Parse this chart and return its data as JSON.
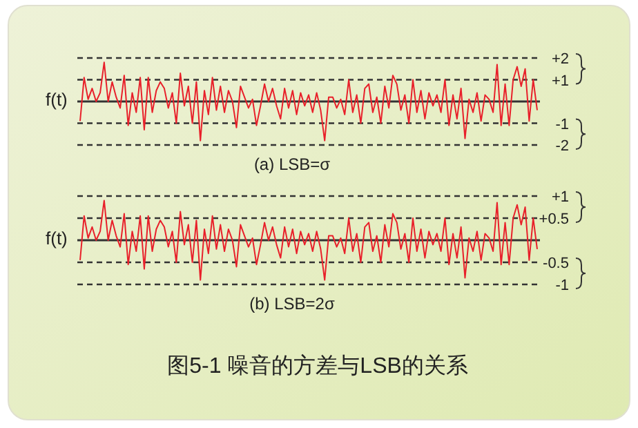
{
  "chart_data": [
    {
      "type": "line",
      "ylabel": "f(t)",
      "xlabel": "(a) LSB=σ",
      "ylim": [
        -2,
        2
      ],
      "categories": [
        null,
        null,
        null,
        null,
        null,
        null,
        null,
        null,
        null,
        null,
        null,
        null,
        null,
        null,
        null,
        null,
        null,
        null,
        null,
        null,
        null,
        null,
        null,
        null,
        null,
        null,
        null,
        null,
        null,
        null,
        null,
        null,
        null,
        null,
        null,
        null,
        null,
        null,
        null,
        null,
        null,
        null,
        null,
        null,
        null,
        null,
        null,
        null,
        null,
        null,
        null,
        null,
        null,
        null,
        null,
        null,
        null,
        null,
        null,
        null,
        null,
        null,
        null,
        null,
        null,
        null,
        null,
        null,
        null,
        null,
        null,
        null,
        null,
        null,
        null,
        null,
        null,
        null,
        null,
        null,
        null,
        null,
        null,
        null,
        null,
        null,
        null,
        null,
        null,
        null,
        null,
        null,
        null,
        null,
        null,
        null,
        null,
        null,
        null,
        null,
        null,
        null,
        null,
        null,
        null,
        null,
        null,
        null,
        null,
        null,
        null,
        null,
        null,
        null,
        null
      ],
      "series": [
        {
          "color": "#e8202a",
          "values": [
            -0.9,
            1.1,
            0.1,
            0.6,
            0,
            0.4,
            1.8,
            0,
            0.9,
            0.2,
            -0.3,
            1.2,
            -1.1,
            0.4,
            -0.5,
            1.1,
            -1.3,
            1.1,
            -0.5,
            0.5,
            0.9,
            0.6,
            -0.3,
            0.4,
            -1.0,
            1.3,
            -0.2,
            0.7,
            -1.0,
            0.9,
            -1.8,
            0.5,
            -0.6,
            1.1,
            -0.4,
            0.7,
            -0.5,
            0.5,
            0,
            -1.2,
            0.7,
            0.2,
            -0.3,
            0.1,
            -1.1,
            -0.2,
            0.8,
            0,
            0.6,
            -0.2,
            -0.8,
            0.6,
            -0.3,
            0.5,
            -0.6,
            0.4,
            -0.2,
            0.3,
            -0.5,
            0.4,
            -0.4,
            -1.8,
            0.2,
            0.2,
            -0.3,
            0.1,
            -0.6,
            1.0,
            -0.5,
            0.3,
            -1.0,
            0.6,
            0.8,
            -0.5,
            0.2,
            -1.0,
            0.7,
            -0.3,
            1.2,
            0.8,
            -0.4,
            0.3,
            -1.0,
            1.0,
            -0.5,
            0.5,
            -0.8,
            0.4,
            -0.2,
            0.3,
            -0.5,
            1.0,
            -1.1,
            0.3,
            -0.8,
            0.6,
            -1.7,
            0.1,
            -0.5,
            0.4,
            -0.9,
            0.3,
            0.1,
            -0.5,
            1.7,
            -1.1,
            0.8,
            -1.1,
            1.0,
            1.6,
            0.7,
            1.5,
            -0.9,
            1.0,
            -0.4
          ]
        }
      ],
      "ref_lines": [
        {
          "axis": "y",
          "value": 2,
          "label": "+2",
          "color": "#333333",
          "line_style": "dashed"
        },
        {
          "axis": "y",
          "value": 1,
          "label": "+1",
          "color": "#333333",
          "line_style": "dashed"
        },
        {
          "axis": "y",
          "value": 0,
          "label": null,
          "color": "#333333",
          "line_style": "solid"
        },
        {
          "axis": "y",
          "value": -1,
          "label": "-1",
          "color": "#333333",
          "line_style": "dashed"
        },
        {
          "axis": "y",
          "value": -2,
          "label": "-2",
          "color": "#333333",
          "line_style": "dashed"
        }
      ]
    },
    {
      "type": "line",
      "ylabel": "f(t)",
      "xlabel": "(b) LSB=2σ",
      "ylim": [
        -1,
        1
      ],
      "categories": [
        null,
        null,
        null,
        null,
        null,
        null,
        null,
        null,
        null,
        null,
        null,
        null,
        null,
        null,
        null,
        null,
        null,
        null,
        null,
        null,
        null,
        null,
        null,
        null,
        null,
        null,
        null,
        null,
        null,
        null,
        null,
        null,
        null,
        null,
        null,
        null,
        null,
        null,
        null,
        null,
        null,
        null,
        null,
        null,
        null,
        null,
        null,
        null,
        null,
        null,
        null,
        null,
        null,
        null,
        null,
        null,
        null,
        null,
        null,
        null,
        null,
        null,
        null,
        null,
        null,
        null,
        null,
        null,
        null,
        null,
        null,
        null,
        null,
        null,
        null,
        null,
        null,
        null,
        null,
        null,
        null,
        null,
        null,
        null,
        null,
        null,
        null,
        null,
        null,
        null,
        null,
        null,
        null,
        null,
        null,
        null,
        null,
        null,
        null,
        null,
        null,
        null,
        null,
        null,
        null,
        null,
        null,
        null,
        null,
        null,
        null,
        null,
        null,
        null,
        null
      ],
      "series": [
        {
          "color": "#e8202a",
          "values": [
            -0.45,
            0.55,
            0.05,
            0.3,
            0,
            0.2,
            0.9,
            0,
            0.45,
            0.1,
            -0.15,
            0.6,
            -0.55,
            0.2,
            -0.25,
            0.55,
            -0.65,
            0.55,
            -0.25,
            0.25,
            0.45,
            0.3,
            -0.15,
            0.2,
            -0.5,
            0.65,
            -0.1,
            0.35,
            -0.5,
            0.45,
            -0.9,
            0.25,
            -0.3,
            0.55,
            -0.2,
            0.35,
            -0.25,
            0.25,
            0,
            -0.6,
            0.35,
            0.1,
            -0.15,
            0.05,
            -0.55,
            -0.1,
            0.4,
            0,
            0.3,
            -0.1,
            -0.4,
            0.3,
            -0.15,
            0.25,
            -0.3,
            0.2,
            -0.1,
            0.15,
            -0.25,
            0.2,
            -0.2,
            -0.9,
            0.1,
            0.1,
            -0.15,
            0.05,
            -0.3,
            0.5,
            -0.25,
            0.15,
            -0.5,
            0.3,
            0.4,
            -0.25,
            0.1,
            -0.5,
            0.35,
            -0.15,
            0.6,
            0.4,
            -0.2,
            0.15,
            -0.5,
            0.5,
            -0.25,
            0.25,
            -0.4,
            0.2,
            -0.1,
            0.15,
            -0.25,
            0.5,
            -0.55,
            0.15,
            -0.4,
            0.3,
            -0.85,
            0.05,
            -0.25,
            0.2,
            -0.45,
            0.15,
            0.05,
            -0.25,
            0.85,
            -0.55,
            0.4,
            -0.55,
            0.5,
            0.8,
            0.35,
            0.75,
            -0.45,
            0.5,
            -0.2
          ]
        }
      ],
      "ref_lines": [
        {
          "axis": "y",
          "value": 1,
          "label": "+1",
          "color": "#333333",
          "line_style": "dashed"
        },
        {
          "axis": "y",
          "value": 0.5,
          "label": "+0.5",
          "color": "#333333",
          "line_style": "dashed"
        },
        {
          "axis": "y",
          "value": 0,
          "label": null,
          "color": "#333333",
          "line_style": "solid"
        },
        {
          "axis": "y",
          "value": -0.5,
          "label": "-0.5",
          "color": "#333333",
          "line_style": "dashed"
        },
        {
          "axis": "y",
          "value": -1,
          "label": "-1",
          "color": "#333333",
          "line_style": "dashed"
        }
      ],
      "annotations": [
        "图5-1 噪音的方差与LSB的关系"
      ]
    }
  ]
}
